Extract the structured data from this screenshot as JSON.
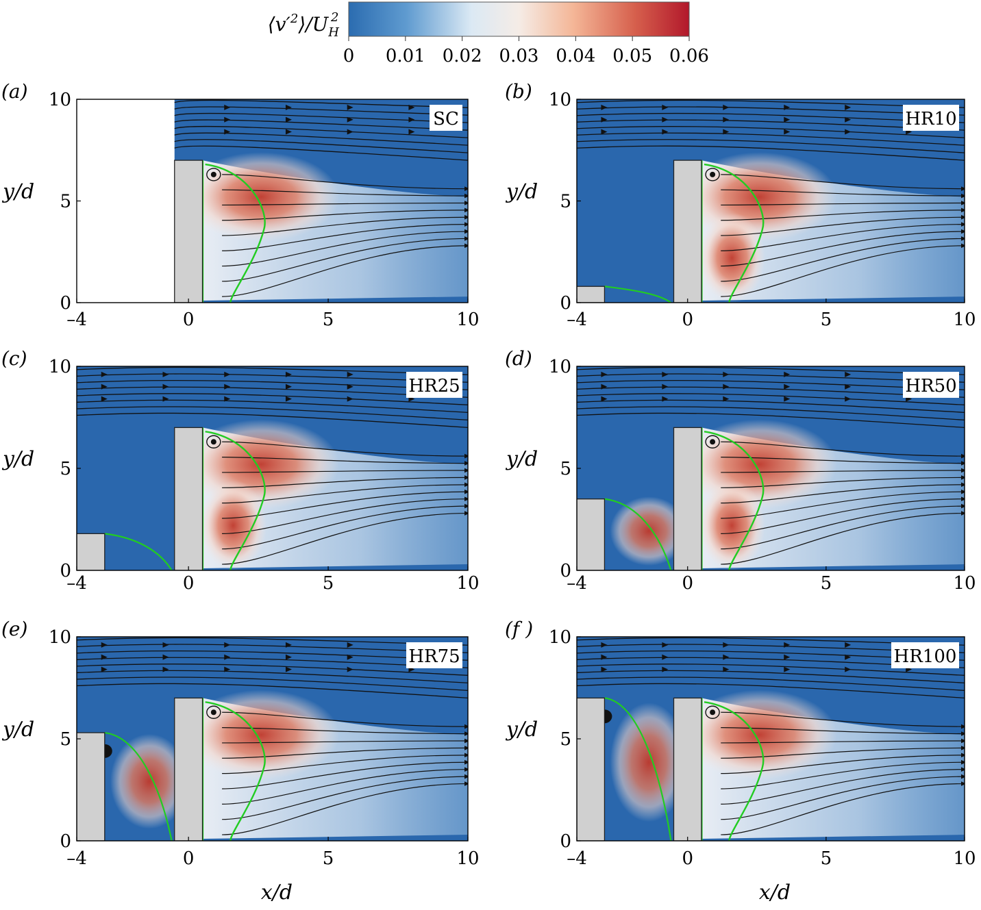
{
  "colorbar": {
    "label": "⟨v′²⟩/U_H²",
    "label_main": "⟨v′",
    "label_sup": "2",
    "label_mid": "⟩/U",
    "label_sub": "H",
    "label_sup2": "2",
    "ticks": [
      "0",
      "0.01",
      "0.02",
      "0.03",
      "0.04",
      "0.05",
      "0.06"
    ],
    "range": [
      0,
      0.06
    ],
    "colors": [
      "#2b6cb0",
      "#5f9bd0",
      "#dbe9f4",
      "#f5ece6",
      "#f4b697",
      "#d6604d",
      "#b2182b"
    ]
  },
  "panels": [
    {
      "letter": "(a)",
      "tag": "SC"
    },
    {
      "letter": "(b)",
      "tag": "HR10"
    },
    {
      "letter": "(c)",
      "tag": "HR25"
    },
    {
      "letter": "(d)",
      "tag": "HR50"
    },
    {
      "letter": "(e)",
      "tag": "HR75"
    },
    {
      "letter": "(f )",
      "tag": "HR100"
    }
  ],
  "axes": {
    "xticks": [
      "–4",
      "0",
      "5",
      "10"
    ],
    "yticks": [
      "0",
      "5",
      "10"
    ],
    "xlabel": "x/d",
    "ylabel": "y/d"
  },
  "colors": {
    "field_blue": "#2a67ad",
    "block_grey": "#d0d0d0",
    "separatrix_green": "#22cc22",
    "streamline": "#111111"
  }
}
